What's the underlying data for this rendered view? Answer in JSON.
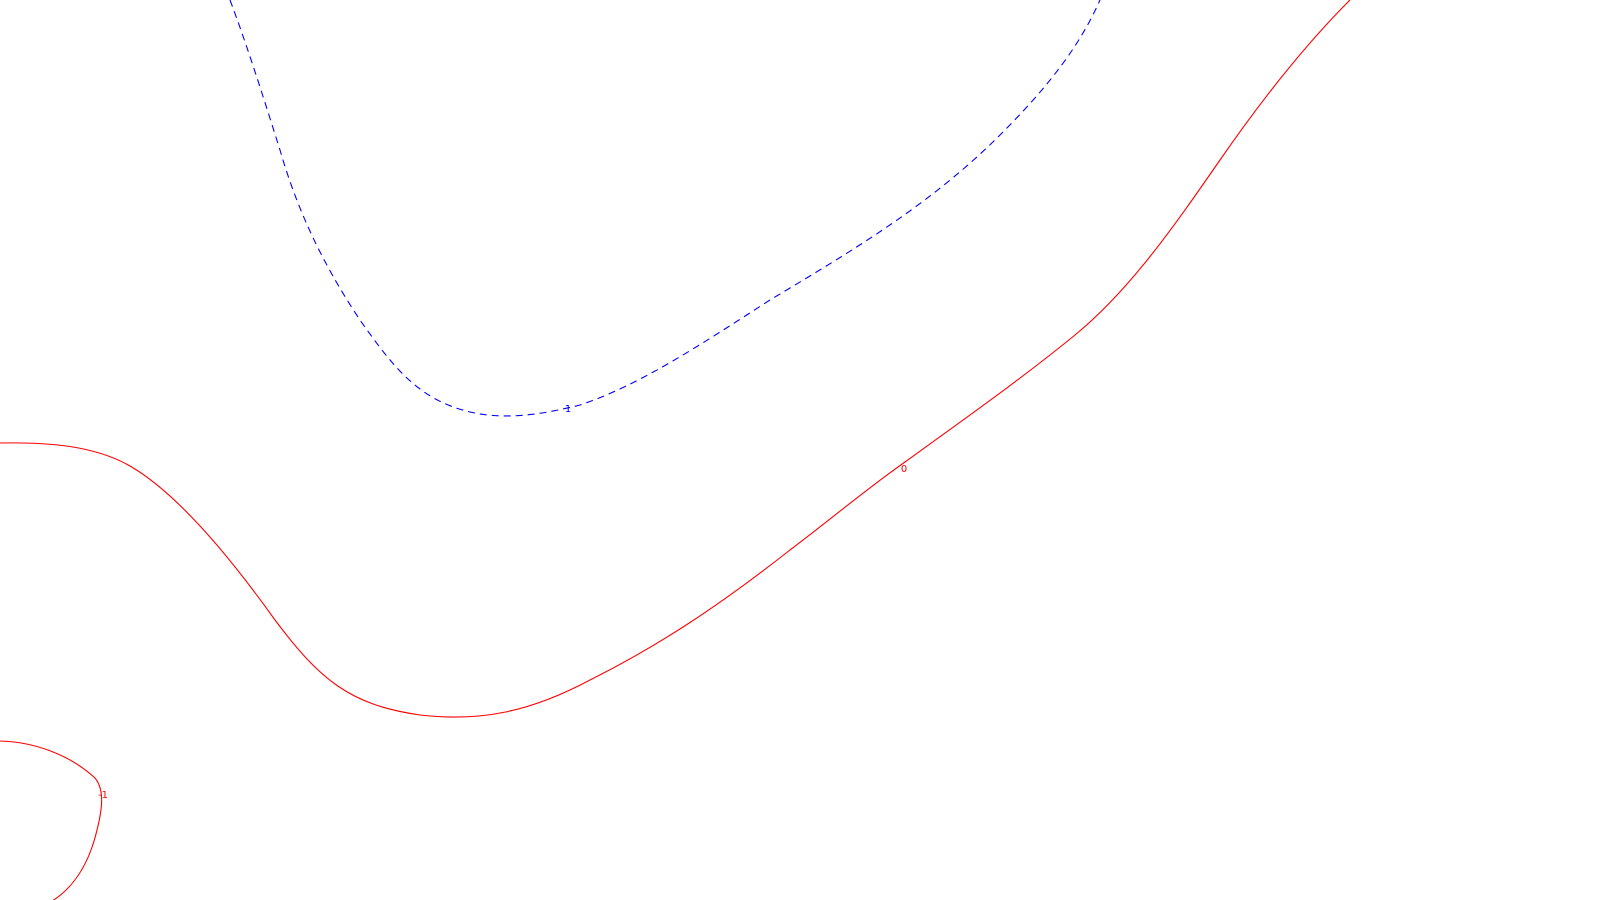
{
  "contours": [
    {
      "level": "1",
      "color": "#0000ff",
      "style": "dashed"
    },
    {
      "level": "0",
      "color": "#ff0000",
      "style": "solid"
    },
    {
      "level": "-1",
      "color": "#ff0000",
      "style": "solid"
    }
  ]
}
